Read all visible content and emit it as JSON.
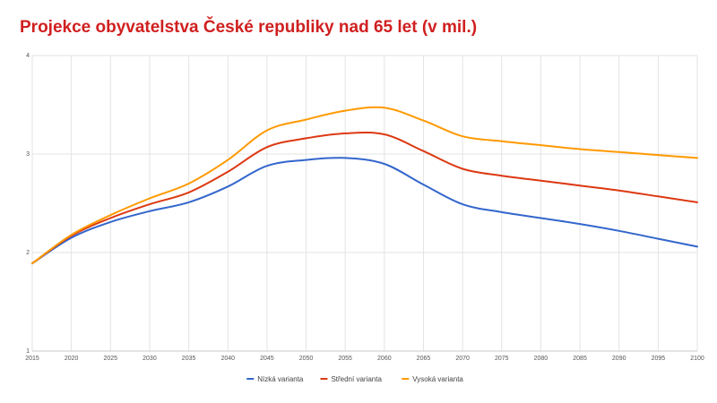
{
  "chart_data": {
    "type": "line",
    "title": "Projekce obyvatelstva České republiky nad 65 let (v mil.)",
    "xlabel": "",
    "ylabel": "",
    "x": [
      2015,
      2020,
      2025,
      2030,
      2035,
      2040,
      2045,
      2050,
      2055,
      2060,
      2065,
      2070,
      2075,
      2080,
      2085,
      2090,
      2095,
      2100
    ],
    "x_ticks": [
      "2015",
      "2020",
      "2025",
      "2030",
      "2035",
      "2040",
      "2045",
      "2050",
      "2055",
      "2060",
      "2065",
      "2070",
      "2075",
      "2080",
      "2085",
      "2090",
      "2095",
      "2100"
    ],
    "y_ticks": [
      "1",
      "2",
      "3",
      "4"
    ],
    "ylim": [
      1,
      4
    ],
    "grid": true,
    "legend_position": "bottom",
    "series": [
      {
        "name": "Nízká varianta",
        "color": "#3366cc",
        "values": [
          1.89,
          2.15,
          2.31,
          2.42,
          2.51,
          2.67,
          2.88,
          2.94,
          2.96,
          2.9,
          2.69,
          2.49,
          2.41,
          2.35,
          2.29,
          2.22,
          2.14,
          2.06
        ]
      },
      {
        "name": "Střední varianta",
        "color": "#dc3912",
        "values": [
          1.89,
          2.17,
          2.35,
          2.49,
          2.61,
          2.82,
          3.07,
          3.16,
          3.21,
          3.2,
          3.03,
          2.85,
          2.78,
          2.73,
          2.68,
          2.63,
          2.57,
          2.51
        ]
      },
      {
        "name": "Vysoká varianta",
        "color": "#ff9900",
        "values": [
          1.89,
          2.18,
          2.38,
          2.55,
          2.7,
          2.94,
          3.24,
          3.35,
          3.44,
          3.47,
          3.34,
          3.18,
          3.13,
          3.09,
          3.05,
          3.02,
          2.99,
          2.96
        ]
      }
    ]
  }
}
